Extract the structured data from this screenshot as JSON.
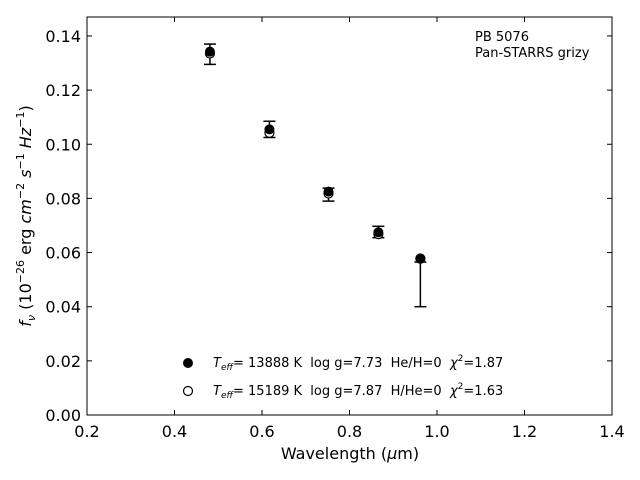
{
  "chart_data": {
    "type": "scatter",
    "annotation": [
      "PB 5076",
      "Pan-STARRS grizy"
    ],
    "xlabel": "Wavelength (μm)",
    "ylabel": "fν (10⁻²⁶ erg cm⁻² s⁻¹ Hz⁻¹)",
    "xlim": [
      0.2,
      1.4
    ],
    "ylim": [
      0.0,
      0.147
    ],
    "xticks": [
      "0.2",
      "0.4",
      "0.6",
      "0.8",
      "1.0",
      "1.2",
      "1.4"
    ],
    "yticks": [
      "0.00",
      "0.02",
      "0.04",
      "0.06",
      "0.08",
      "0.10",
      "0.12",
      "0.14"
    ],
    "grid": false,
    "legend_position": "bottom-center",
    "observed": [
      {
        "x": 0.481,
        "y": 0.1332,
        "err_low": 0.1295,
        "err_high": 0.137
      },
      {
        "x": 0.617,
        "y": 0.1055,
        "err_low": 0.1025,
        "err_high": 0.1085
      },
      {
        "x": 0.752,
        "y": 0.0822,
        "err_low": 0.079,
        "err_high": 0.0838
      },
      {
        "x": 0.866,
        "y": 0.0671,
        "err_low": 0.0655,
        "err_high": 0.0697
      },
      {
        "x": 0.962,
        "y": 0.0579,
        "err_low": 0.04,
        "err_high": 0.0565
      }
    ],
    "series": [
      {
        "name": "T_eff= 13888 K  log g=7.73  He/H=0  χ²=1.87",
        "marker": "filled-circle",
        "color": "#000000",
        "x": [
          0.481,
          0.617,
          0.752,
          0.866,
          0.962
        ],
        "y": [
          0.1342,
          0.1055,
          0.0825,
          0.0675,
          0.0577
        ]
      },
      {
        "name": "T_eff= 15189 K  log g=7.87  H/He=0  χ²=1.63",
        "marker": "open-circle",
        "color": "#000000",
        "x": [
          0.481,
          0.617,
          0.752,
          0.866,
          0.962
        ],
        "y": [
          0.1335,
          0.1042,
          0.0818,
          0.0668,
          0.0578
        ]
      }
    ],
    "legend": [
      {
        "marker": "filled-circle",
        "label_symbol": "T",
        "label_subscript": "eff",
        "label_text": "= 13888 K  log g=7.73  He/H=0  ",
        "chi_symbol": "χ",
        "chi_sup": "2",
        "chi_value": "=1.87"
      },
      {
        "marker": "open-circle",
        "label_symbol": "T",
        "label_subscript": "eff",
        "label_text": "= 15189 K  log g=7.87  H/He=0  ",
        "chi_symbol": "χ",
        "chi_sup": "2",
        "chi_value": "=1.63"
      }
    ],
    "ylabel_parts": {
      "f": "f",
      "nu": "ν",
      "prefix": " (10",
      "exp1": "−26",
      "erg": " erg ",
      "cm": "cm",
      "exp2": "−2",
      "s": " s",
      "exp3": "−1",
      "hz": " Hz",
      "exp4": "−1",
      "close": ")"
    },
    "xlabel_parts": {
      "main": "Wavelength (",
      "mu": "μ",
      "m": "m)"
    }
  }
}
